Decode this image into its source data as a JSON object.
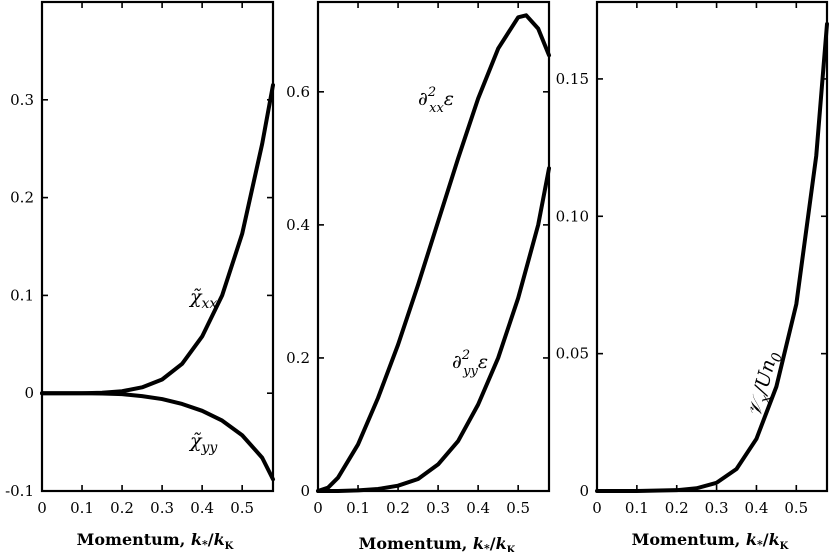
{
  "chart_data": [
    {
      "type": "line",
      "xlabel": "Momentum, k*/kK",
      "xlim": [
        0,
        0.577
      ],
      "ylim": [
        -0.1,
        0.4
      ],
      "xticks": [
        0,
        0.1,
        0.2,
        0.3,
        0.4,
        0.5
      ],
      "xtick_labels": [
        "0",
        "0.1",
        "0.2",
        "0.3",
        "0.4",
        "0.5"
      ],
      "yticks": [
        -0.1,
        0,
        0.1,
        0.2,
        0.3
      ],
      "ytick_labels": [
        "-0.1",
        "0",
        "0.1",
        "0.2",
        "0.3"
      ],
      "grid": false,
      "series": [
        {
          "name": "χ̃xx",
          "x": [
            0,
            0.05,
            0.1,
            0.15,
            0.2,
            0.25,
            0.3,
            0.35,
            0.4,
            0.45,
            0.5,
            0.55,
            0.577
          ],
          "y": [
            0,
            0,
            0,
            0.0005,
            0.002,
            0.006,
            0.014,
            0.03,
            0.058,
            0.1,
            0.163,
            0.255,
            0.315
          ]
        },
        {
          "name": "χ̃yy",
          "x": [
            0,
            0.05,
            0.1,
            0.15,
            0.2,
            0.25,
            0.3,
            0.35,
            0.4,
            0.45,
            0.5,
            0.55,
            0.577
          ],
          "y": [
            0,
            0,
            0,
            -0.0003,
            -0.001,
            -0.003,
            -0.006,
            -0.011,
            -0.018,
            -0.028,
            -0.043,
            -0.066,
            -0.088
          ]
        }
      ]
    },
    {
      "type": "line",
      "xlabel": "Momentum, k*/kK",
      "xlim": [
        0,
        0.577
      ],
      "ylim": [
        0,
        0.735
      ],
      "xticks": [
        0,
        0.1,
        0.2,
        0.3,
        0.4,
        0.5
      ],
      "xtick_labels": [
        "0",
        "0.1",
        "0.2",
        "0.3",
        "0.4",
        "0.5"
      ],
      "yticks": [
        0,
        0.2,
        0.4,
        0.6
      ],
      "ytick_labels": [
        "0",
        "0.2",
        "0.4",
        "0.6"
      ],
      "grid": false,
      "series": [
        {
          "name": "∂²xx ε",
          "x": [
            0,
            0.025,
            0.05,
            0.1,
            0.15,
            0.2,
            0.25,
            0.3,
            0.35,
            0.4,
            0.45,
            0.5,
            0.52,
            0.55,
            0.577
          ],
          "y": [
            0,
            0.005,
            0.02,
            0.07,
            0.14,
            0.22,
            0.31,
            0.405,
            0.5,
            0.59,
            0.665,
            0.712,
            0.715,
            0.695,
            0.655
          ]
        },
        {
          "name": "∂²yy ε",
          "x": [
            0,
            0.05,
            0.1,
            0.15,
            0.2,
            0.25,
            0.3,
            0.35,
            0.4,
            0.45,
            0.5,
            0.55,
            0.577
          ],
          "y": [
            0,
            0,
            0.001,
            0.003,
            0.008,
            0.018,
            0.04,
            0.075,
            0.13,
            0.2,
            0.29,
            0.4,
            0.485
          ]
        }
      ]
    },
    {
      "type": "line",
      "xlabel": "Momentum, k*/kK",
      "xlim": [
        0,
        0.577
      ],
      "ylim": [
        0,
        0.178
      ],
      "xticks": [
        0,
        0.1,
        0.2,
        0.3,
        0.4,
        0.5
      ],
      "xtick_labels": [
        "0",
        "0.1",
        "0.2",
        "0.3",
        "0.4",
        "0.5"
      ],
      "yticks": [
        0,
        0.05,
        0.1,
        0.15
      ],
      "ytick_labels": [
        "0",
        "0.05",
        "0.10",
        "0.15"
      ],
      "grid": false,
      "series": [
        {
          "name": "𝒱x/Un0",
          "x": [
            0,
            0.1,
            0.2,
            0.25,
            0.3,
            0.35,
            0.4,
            0.45,
            0.5,
            0.55,
            0.577
          ],
          "y": [
            0,
            0,
            0.0003,
            0.001,
            0.003,
            0.008,
            0.019,
            0.038,
            0.068,
            0.122,
            0.17
          ]
        }
      ]
    }
  ],
  "labels": {
    "xaxis": "Momentum, ",
    "chi_xx": "χ̃xx",
    "chi_yy": "χ̃yy",
    "dxx": "∂²xx ε",
    "dyy": "∂²yy ε",
    "vx": "𝒱x/Un0"
  }
}
